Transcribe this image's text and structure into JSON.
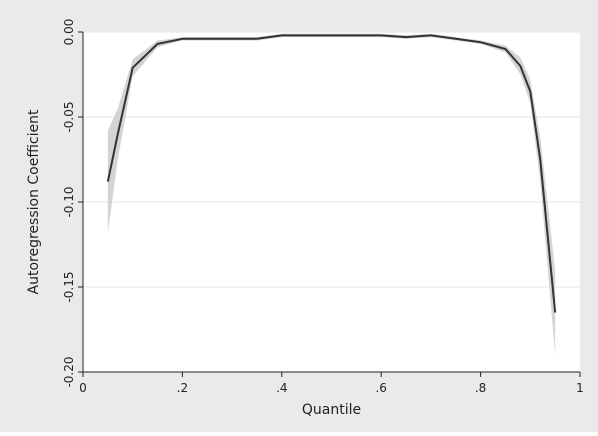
{
  "chart_data": {
    "type": "line",
    "title": "",
    "xlabel": "Quantile",
    "ylabel": "Autoregression Coefficient",
    "xlim": [
      0,
      1
    ],
    "ylim": [
      -0.2,
      0.0
    ],
    "grid": true,
    "x_ticks": [
      {
        "value": 0,
        "label": "0"
      },
      {
        "value": 0.2,
        "label": ".2"
      },
      {
        "value": 0.4,
        "label": ".4"
      },
      {
        "value": 0.6,
        "label": ".6"
      },
      {
        "value": 0.8,
        "label": ".8"
      },
      {
        "value": 1,
        "label": "1"
      }
    ],
    "y_ticks": [
      {
        "value": 0.0,
        "label": "0.00"
      },
      {
        "value": -0.05,
        "label": "-0.05"
      },
      {
        "value": -0.1,
        "label": "-0.10"
      },
      {
        "value": -0.15,
        "label": "-0.15"
      },
      {
        "value": -0.2,
        "label": "-0.20"
      }
    ],
    "series": [
      {
        "color": "#333333",
        "x": [
          0.05,
          0.07,
          0.1,
          0.15,
          0.2,
          0.25,
          0.3,
          0.35,
          0.4,
          0.45,
          0.5,
          0.55,
          0.6,
          0.65,
          0.7,
          0.75,
          0.8,
          0.85,
          0.88,
          0.9,
          0.92,
          0.95
        ],
        "y": [
          -0.088,
          -0.06,
          -0.021,
          -0.007,
          -0.004,
          -0.004,
          -0.004,
          -0.004,
          -0.002,
          -0.002,
          -0.002,
          -0.002,
          -0.002,
          -0.003,
          -0.002,
          -0.004,
          -0.006,
          -0.01,
          -0.02,
          -0.035,
          -0.075,
          -0.165
        ],
        "band_lower": [
          -0.118,
          -0.075,
          -0.026,
          -0.009,
          -0.005,
          -0.005,
          -0.005,
          -0.005,
          -0.003,
          -0.003,
          -0.003,
          -0.003,
          -0.003,
          -0.004,
          -0.003,
          -0.005,
          -0.007,
          -0.012,
          -0.025,
          -0.042,
          -0.088,
          -0.19
        ],
        "band_upper": [
          -0.058,
          -0.045,
          -0.016,
          -0.005,
          -0.003,
          -0.003,
          -0.003,
          -0.003,
          -0.001,
          -0.001,
          -0.001,
          -0.001,
          -0.001,
          -0.002,
          -0.001,
          -0.003,
          -0.005,
          -0.008,
          -0.015,
          -0.028,
          -0.062,
          -0.14
        ]
      }
    ],
    "band_color": "#cfcfcf",
    "plot_background": "#ffffff",
    "figure_background": "#eaeaea"
  }
}
